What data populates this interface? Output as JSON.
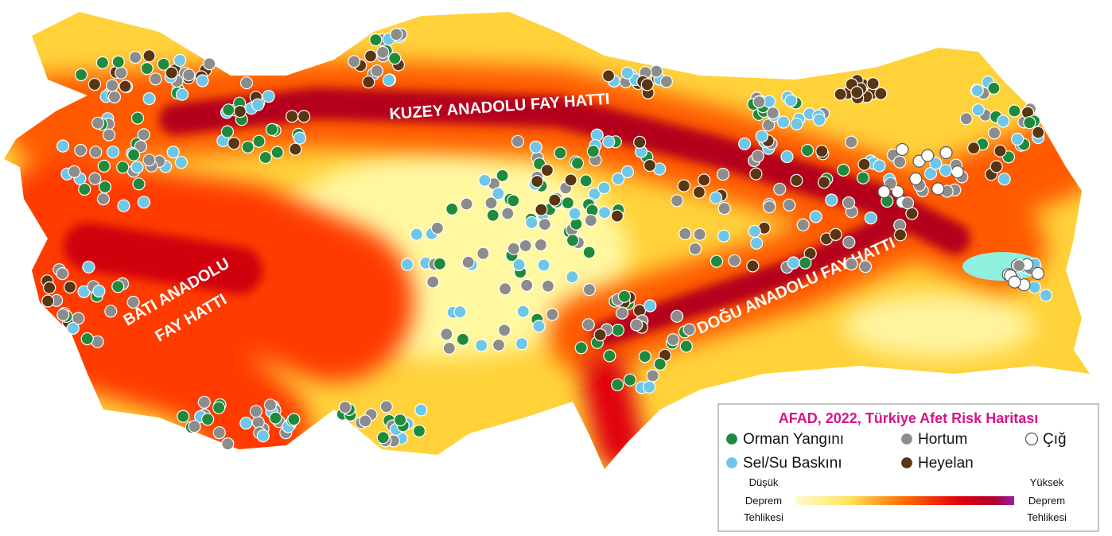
{
  "map": {
    "fault_labels": {
      "north": "KUZEY ANADOLU FAY HATTI",
      "east": "DOĞU ANADOLU FAY HATTI",
      "west": [
        "BATI ANADOLU",
        "FAY HATTI"
      ]
    },
    "legend": {
      "title": "AFAD, 2022, Türkiye Afet Risk Haritası",
      "items": [
        {
          "label": "Orman Yangını",
          "color": "#1f8a3b"
        },
        {
          "label": "Hortum",
          "color": "#8c8c8c"
        },
        {
          "label": "Çığ",
          "color": "#ffffff"
        },
        {
          "label": "Sel/Su Baskını",
          "color": "#6ec6e8"
        },
        {
          "label": "Heyelan",
          "color": "#5a3512"
        }
      ],
      "scale": {
        "low": [
          "Düşük",
          "Deprem",
          "Tehlikesi"
        ],
        "high": [
          "Yüksek",
          "Deprem",
          "Tehlikesi"
        ]
      }
    }
  }
}
